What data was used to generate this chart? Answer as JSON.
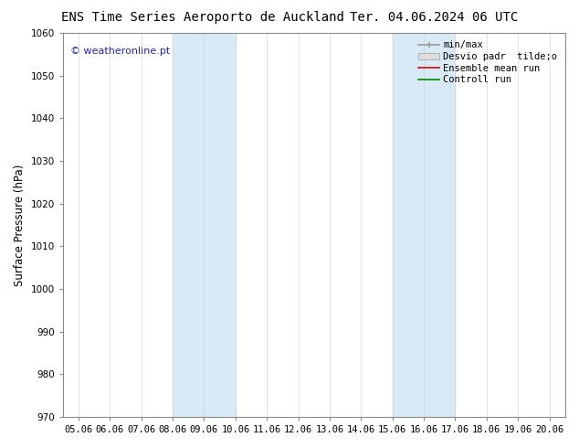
{
  "title_left": "ENS Time Series Aeroporto de Auckland",
  "title_right": "Ter. 04.06.2024 06 UTC",
  "ylabel": "Surface Pressure (hPa)",
  "ylim": [
    970,
    1060
  ],
  "yticks": [
    970,
    980,
    990,
    1000,
    1010,
    1020,
    1030,
    1040,
    1050,
    1060
  ],
  "x_labels": [
    "05.06",
    "06.06",
    "07.06",
    "08.06",
    "09.06",
    "10.06",
    "11.06",
    "12.06",
    "13.06",
    "14.06",
    "15.06",
    "16.06",
    "17.06",
    "18.06",
    "19.06",
    "20.06"
  ],
  "x_values": [
    0,
    1,
    2,
    3,
    4,
    5,
    6,
    7,
    8,
    9,
    10,
    11,
    12,
    13,
    14,
    15
  ],
  "shaded_regions": [
    {
      "xmin": 3,
      "xmax": 5,
      "color": "#d9eaf7"
    },
    {
      "xmin": 10,
      "xmax": 12,
      "color": "#d9eaf7"
    }
  ],
  "watermark": "© weatheronline.pt",
  "watermark_color": "#2222cc",
  "background_color": "#ffffff",
  "plot_bg_color": "#ffffff",
  "legend_minmax_color": "#999999",
  "legend_desvio_face": "#dddddd",
  "legend_desvio_edge": "#aaaaaa",
  "legend_ens_color": "#dd0000",
  "legend_ctrl_color": "#008800",
  "title_fontsize": 10,
  "tick_fontsize": 7.5,
  "ylabel_fontsize": 8.5,
  "watermark_fontsize": 8,
  "legend_fontsize": 7.5
}
